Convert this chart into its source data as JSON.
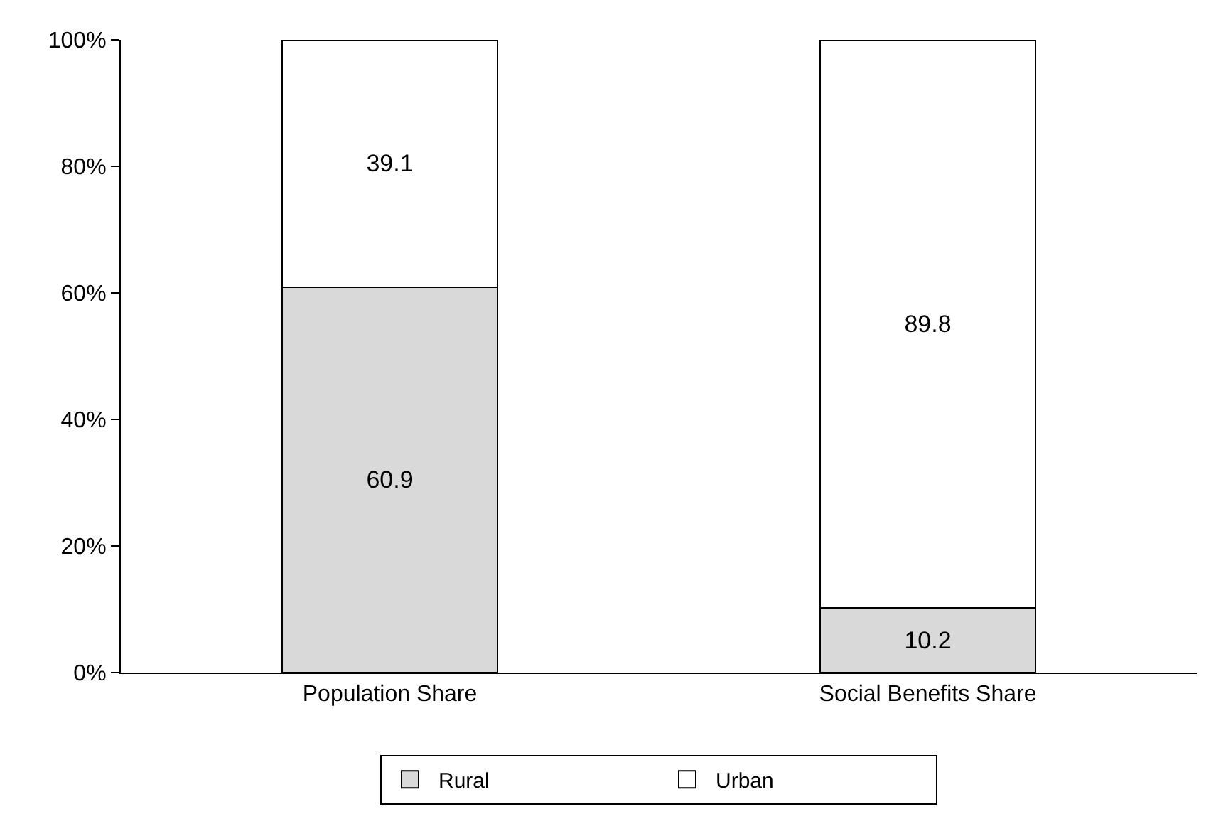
{
  "chart_data": {
    "type": "bar",
    "stacked": true,
    "categories": [
      "Population Share",
      "Social Benefits Share"
    ],
    "series": [
      {
        "name": "Rural",
        "color": "#d9d9d9",
        "values": [
          60.9,
          10.2
        ]
      },
      {
        "name": "Urban",
        "color": "#ffffff",
        "values": [
          39.1,
          89.8
        ]
      }
    ],
    "ylim": [
      0,
      100
    ],
    "yticks": [
      {
        "value": 0,
        "label": "0%"
      },
      {
        "value": 20,
        "label": "20%"
      },
      {
        "value": 40,
        "label": "40%"
      },
      {
        "value": 60,
        "label": "60%"
      },
      {
        "value": 80,
        "label": "80%"
      },
      {
        "value": 100,
        "label": "100%"
      }
    ],
    "data_labels": true,
    "legend": "bottom"
  }
}
